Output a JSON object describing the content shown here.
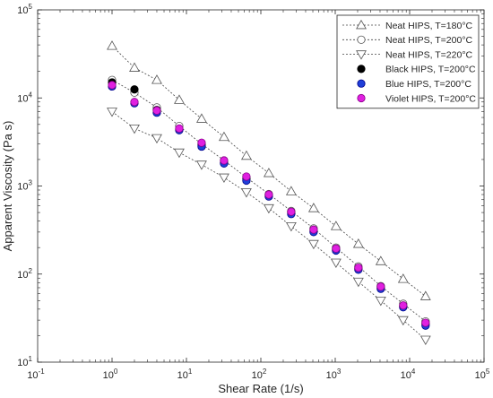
{
  "chart_data": {
    "type": "scatter",
    "title": "",
    "xlabel": "Shear Rate (1/s)",
    "ylabel": "Apparent Viscosity (Pa s)",
    "xscale": "log",
    "yscale": "log",
    "xlim": [
      0.1,
      100000
    ],
    "ylim": [
      10,
      100000
    ],
    "x_ticks": [
      {
        "base": "10",
        "exp": "-1"
      },
      {
        "base": "10",
        "exp": "0"
      },
      {
        "base": "10",
        "exp": "1"
      },
      {
        "base": "10",
        "exp": "2"
      },
      {
        "base": "10",
        "exp": "3"
      },
      {
        "base": "10",
        "exp": "4"
      },
      {
        "base": "10",
        "exp": "5"
      }
    ],
    "y_ticks": [
      {
        "base": "10",
        "exp": "1"
      },
      {
        "base": "10",
        "exp": "2"
      },
      {
        "base": "10",
        "exp": "3"
      },
      {
        "base": "10",
        "exp": "4"
      },
      {
        "base": "10",
        "exp": "5"
      }
    ],
    "grid": false,
    "legend_position": "top-right",
    "series": [
      {
        "name": "Neat HIPS, T=180°C",
        "marker": "triangle-up",
        "fill": "#ffffff",
        "stroke": "#555555",
        "line": "dotted",
        "x": [
          1,
          2,
          4,
          8,
          16,
          32,
          64,
          128,
          256,
          512,
          1024,
          2048,
          4096,
          8192,
          16384
        ],
        "y": [
          39000,
          22000,
          16000,
          9500,
          5800,
          3600,
          2200,
          1400,
          870,
          560,
          350,
          220,
          140,
          88,
          56
        ]
      },
      {
        "name": "Neat HIPS, T=200°C",
        "marker": "circle",
        "fill": "#ffffff",
        "stroke": "#555555",
        "line": "dotted",
        "x": [
          1,
          2,
          4,
          8,
          16,
          32,
          64,
          128,
          256,
          512,
          1024,
          2048,
          4096,
          8192,
          16384
        ],
        "y": [
          16000,
          11500,
          7800,
          4800,
          3000,
          1950,
          1250,
          810,
          520,
          330,
          200,
          122,
          73,
          46,
          29
        ]
      },
      {
        "name": "Neat HIPS, T=220°C",
        "marker": "triangle-down",
        "fill": "#ffffff",
        "stroke": "#555555",
        "line": "dotted",
        "x": [
          1,
          2,
          4,
          8,
          16,
          32,
          64,
          128,
          256,
          512,
          1024,
          2048,
          4096,
          8192,
          16384
        ],
        "y": [
          7000,
          4500,
          3500,
          2400,
          1750,
          1250,
          850,
          560,
          350,
          220,
          135,
          82,
          50,
          30,
          18
        ]
      },
      {
        "name": "Black HIPS, T=200°C",
        "marker": "circle",
        "fill": "#000000",
        "stroke": "#000000",
        "line": "none",
        "x": [
          1,
          2,
          4,
          8,
          16,
          32,
          64,
          128,
          256,
          512,
          1024,
          2048,
          4096,
          8192,
          16384
        ],
        "y": [
          15000,
          12500,
          7300,
          4400,
          2900,
          1850,
          1200,
          780,
          500,
          310,
          190,
          115,
          70,
          43,
          27
        ]
      },
      {
        "name": "Blue HIPS, T=200°C",
        "marker": "circle",
        "fill": "#1f3fd8",
        "stroke": "#00008b",
        "line": "none",
        "x": [
          1,
          2,
          4,
          8,
          16,
          32,
          64,
          128,
          256,
          512,
          1024,
          2048,
          4096,
          8192,
          16384
        ],
        "y": [
          13500,
          8700,
          6800,
          4300,
          2800,
          1800,
          1150,
          760,
          480,
          300,
          185,
          112,
          68,
          42,
          26
        ]
      },
      {
        "name": "Violet HIPS, T=200°C",
        "marker": "circle",
        "fill": "#e020e0",
        "stroke": "#8b008b",
        "line": "none",
        "x": [
          1,
          2,
          4,
          8,
          16,
          32,
          64,
          128,
          256,
          512,
          1024,
          2048,
          4096,
          8192,
          16384
        ],
        "y": [
          14000,
          9000,
          7200,
          4500,
          3100,
          1950,
          1280,
          800,
          510,
          320,
          195,
          118,
          72,
          44,
          28
        ]
      }
    ]
  }
}
